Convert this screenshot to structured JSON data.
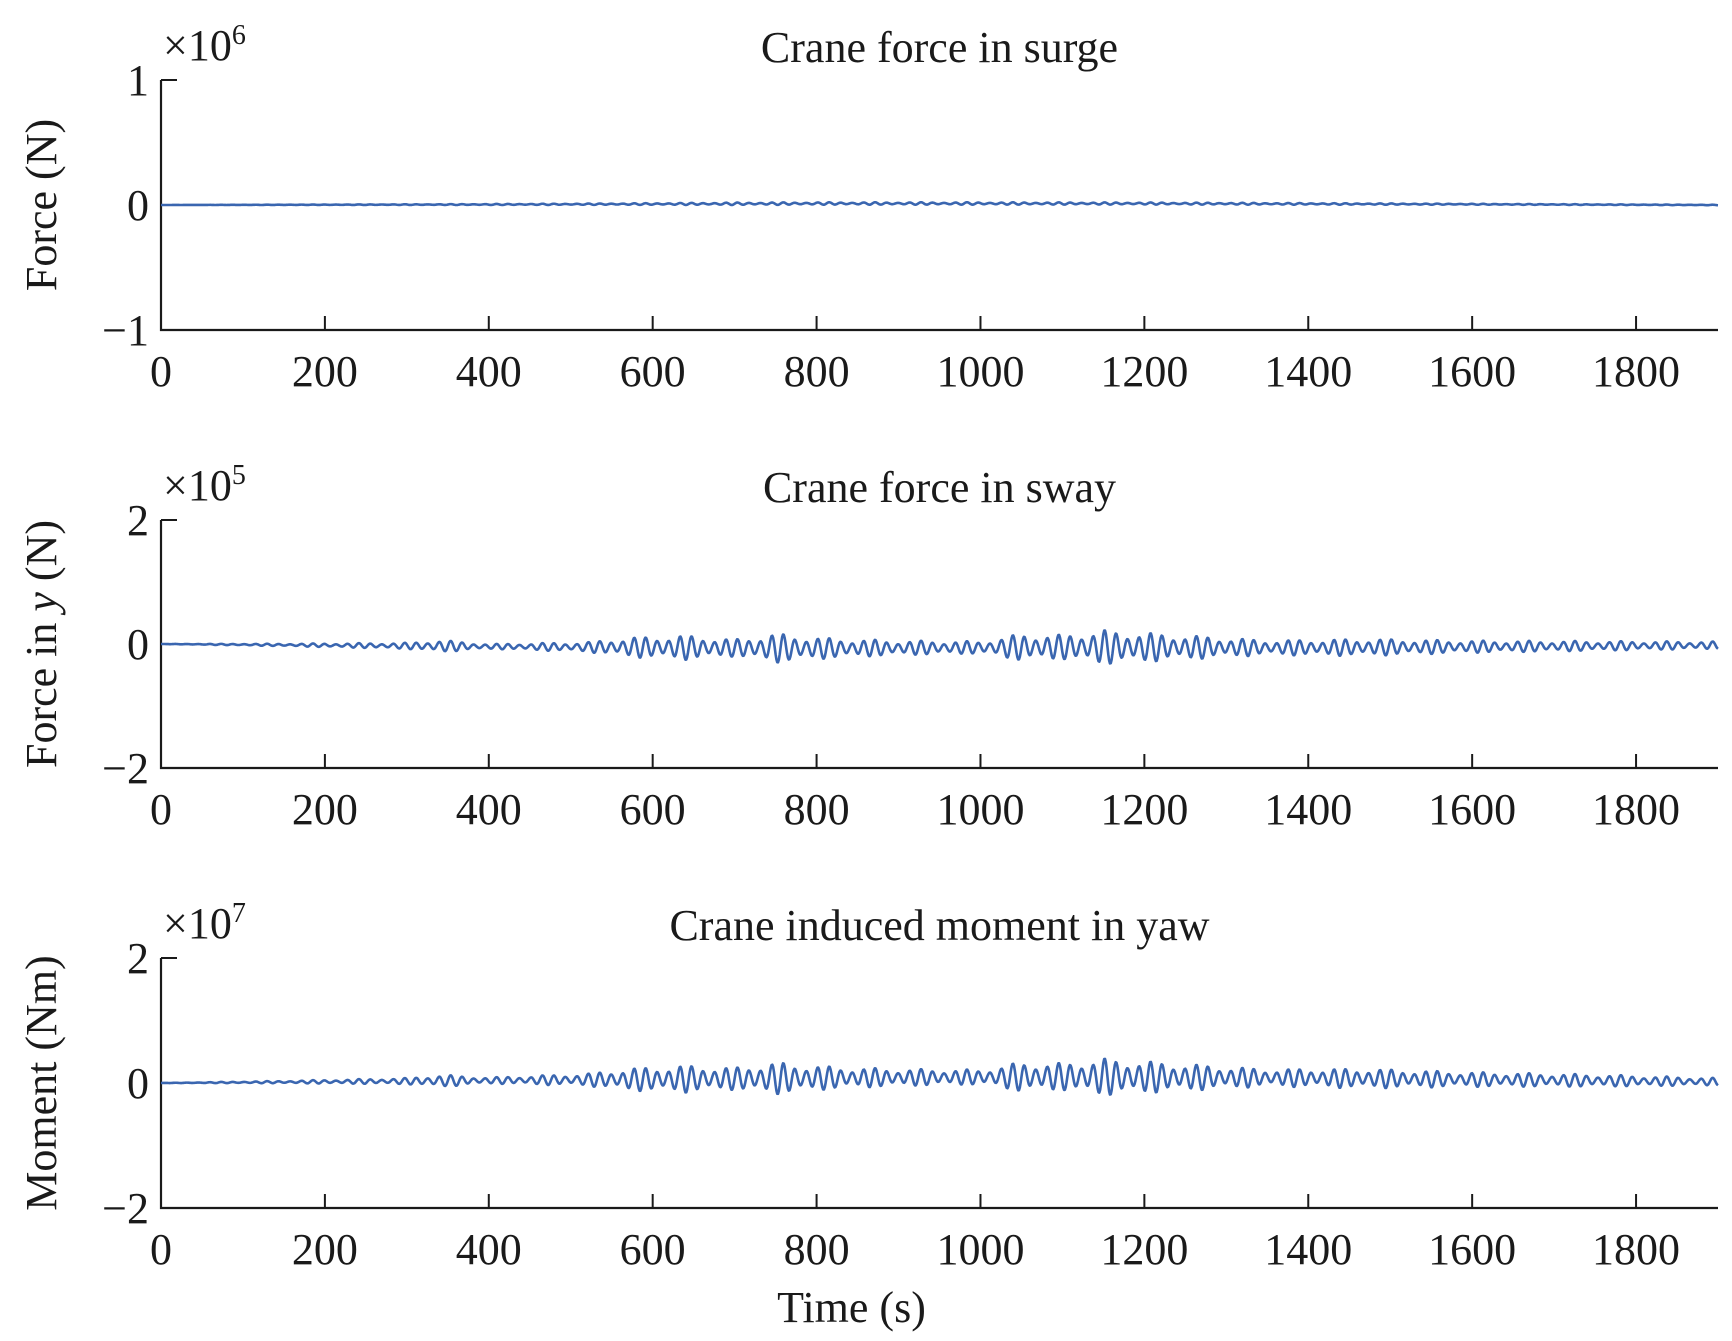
{
  "chart_data": [
    {
      "type": "line",
      "title": "Crane force in surge",
      "ylabel": "Force (N)",
      "ylabel_parts": {
        "text": "Force (N)",
        "italic": ""
      },
      "xlabel": "",
      "exponent": {
        "prefix": "×10",
        "power": "6"
      },
      "xlim": [
        0,
        1900
      ],
      "ylim": [
        -1,
        1
      ],
      "xticks": [
        "0",
        "200",
        "400",
        "600",
        "800",
        "1000",
        "1200",
        "1400",
        "1600",
        "1800"
      ],
      "yticks": [
        "1",
        "0",
        "−1"
      ],
      "grid": false,
      "color": "#3a66b0",
      "signal": {
        "offset": [
          [
            0,
            0.0
          ],
          [
            400,
            0.004
          ],
          [
            800,
            0.012
          ],
          [
            1200,
            0.012
          ],
          [
            1600,
            0.006
          ],
          [
            1900,
            0.0
          ]
        ],
        "amplitude": [
          [
            0,
            0.0
          ],
          [
            100,
            0.001
          ],
          [
            300,
            0.003
          ],
          [
            550,
            0.006
          ],
          [
            700,
            0.01
          ],
          [
            1000,
            0.01
          ],
          [
            1300,
            0.008
          ],
          [
            1600,
            0.004
          ],
          [
            1900,
            0.002
          ]
        ],
        "period_s": 14
      }
    },
    {
      "type": "line",
      "title": "Crane force in sway",
      "ylabel": "Force in y (N)",
      "ylabel_parts": {
        "text": "Force in ",
        "italic": "y",
        "suffix": " (N)"
      },
      "xlabel": "",
      "exponent": {
        "prefix": "×10",
        "power": "5"
      },
      "xlim": [
        0,
        1900
      ],
      "ylim": [
        -2,
        2
      ],
      "xticks": [
        "0",
        "200",
        "400",
        "600",
        "800",
        "1000",
        "1200",
        "1400",
        "1600",
        "1800"
      ],
      "yticks": [
        "2",
        "0",
        "−2"
      ],
      "grid": false,
      "color": "#3a66b0",
      "signal": {
        "offset": [
          [
            0,
            0.0
          ],
          [
            400,
            -0.04
          ],
          [
            800,
            -0.07
          ],
          [
            1100,
            -0.05
          ],
          [
            1400,
            -0.06
          ],
          [
            1900,
            -0.02
          ]
        ],
        "amplitude": [
          [
            0,
            0.0
          ],
          [
            150,
            0.02
          ],
          [
            300,
            0.05
          ],
          [
            340,
            0.1
          ],
          [
            400,
            0.04
          ],
          [
            520,
            0.08
          ],
          [
            570,
            0.16
          ],
          [
            640,
            0.2
          ],
          [
            700,
            0.14
          ],
          [
            750,
            0.24
          ],
          [
            820,
            0.16
          ],
          [
            900,
            0.12
          ],
          [
            1000,
            0.1
          ],
          [
            1050,
            0.22
          ],
          [
            1100,
            0.2
          ],
          [
            1150,
            0.28
          ],
          [
            1250,
            0.2
          ],
          [
            1350,
            0.12
          ],
          [
            1470,
            0.14
          ],
          [
            1600,
            0.1
          ],
          [
            1750,
            0.08
          ],
          [
            1900,
            0.06
          ]
        ],
        "period_s": 14
      }
    },
    {
      "type": "line",
      "title": "Crane induced moment in yaw",
      "ylabel": "Moment (Nm)",
      "ylabel_parts": {
        "text": "Moment (Nm)",
        "italic": ""
      },
      "xlabel": "Time (s)",
      "exponent": {
        "prefix": "×10",
        "power": "7"
      },
      "xlim": [
        0,
        1900
      ],
      "ylim": [
        -2,
        2
      ],
      "xticks": [
        "0",
        "200",
        "400",
        "600",
        "800",
        "1000",
        "1200",
        "1400",
        "1600",
        "1800"
      ],
      "yticks": [
        "2",
        "0",
        "−2"
      ],
      "grid": false,
      "color": "#3a66b0",
      "signal": {
        "offset": [
          [
            0,
            0.0
          ],
          [
            400,
            0.04
          ],
          [
            800,
            0.08
          ],
          [
            1100,
            0.1
          ],
          [
            1400,
            0.08
          ],
          [
            1900,
            0.02
          ]
        ],
        "amplitude": [
          [
            0,
            0.0
          ],
          [
            150,
            0.02
          ],
          [
            300,
            0.05
          ],
          [
            340,
            0.1
          ],
          [
            400,
            0.05
          ],
          [
            520,
            0.1
          ],
          [
            570,
            0.18
          ],
          [
            640,
            0.22
          ],
          [
            700,
            0.18
          ],
          [
            750,
            0.26
          ],
          [
            820,
            0.18
          ],
          [
            900,
            0.14
          ],
          [
            1000,
            0.12
          ],
          [
            1050,
            0.24
          ],
          [
            1100,
            0.22
          ],
          [
            1150,
            0.3
          ],
          [
            1250,
            0.22
          ],
          [
            1350,
            0.14
          ],
          [
            1470,
            0.16
          ],
          [
            1600,
            0.12
          ],
          [
            1750,
            0.1
          ],
          [
            1900,
            0.06
          ]
        ],
        "period_s": 14
      }
    }
  ]
}
